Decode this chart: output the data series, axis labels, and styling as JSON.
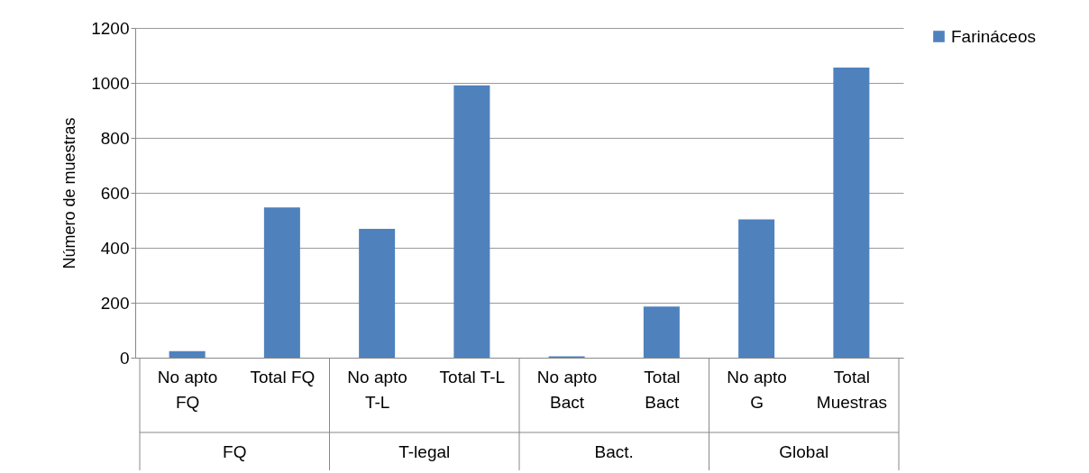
{
  "chart_data": {
    "type": "bar",
    "ylabel": "Número de muestras",
    "categories": [
      "No apto FQ",
      "Total FQ",
      "No apto T-L",
      "Total T-L",
      "No apto Bact",
      "Total Bact",
      "No apto G",
      "Total Muestras"
    ],
    "series": [
      {
        "name": "Farináceos",
        "color": "#4f81bd",
        "values": [
          24,
          547,
          469,
          991,
          5,
          186,
          503,
          1056
        ]
      }
    ],
    "annotations": [
      "FQ",
      "T-legal",
      "Bact.",
      "Global"
    ],
    "ylim": [
      0,
      1200
    ],
    "yticks": [
      0,
      200,
      400,
      600,
      800,
      1000,
      1200
    ],
    "grid": "y",
    "legend": "right"
  }
}
